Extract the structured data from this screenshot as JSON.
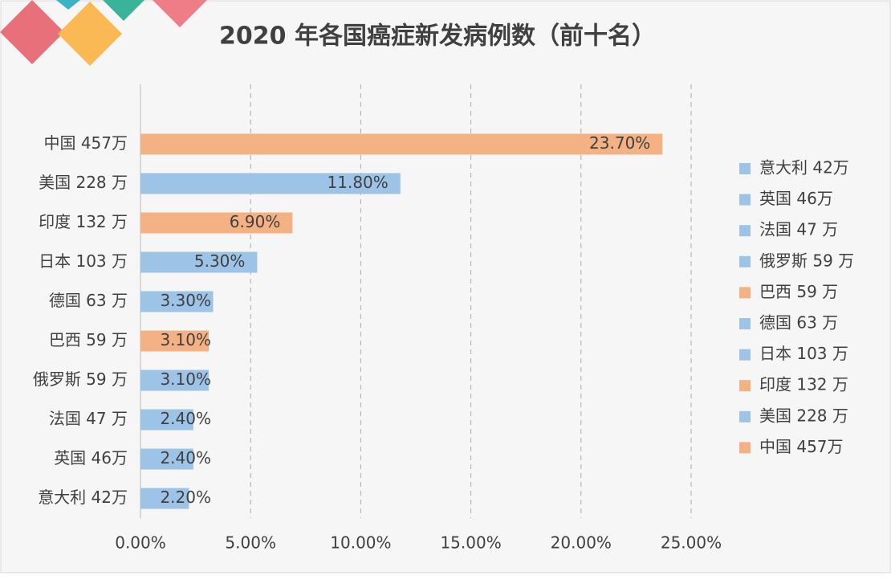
{
  "chart_data": {
    "type": "hbar",
    "title": "2020 年各国癌症新发病例数（前十名）",
    "categories": [
      "中国 457万",
      "美国 228 万",
      "印度 132 万",
      "日本 103 万",
      "德国 63 万",
      "巴西 59 万",
      "俄罗斯 59 万",
      "法国 47 万",
      "英国 46万",
      "意大利 42万"
    ],
    "values": [
      23.7,
      11.8,
      6.9,
      5.3,
      3.3,
      3.1,
      3.1,
      2.4,
      2.4,
      2.2
    ],
    "value_labels": [
      "23.70%",
      "11.80%",
      "6.90%",
      "5.30%",
      "3.30%",
      "3.10%",
      "3.10%",
      "2.40%",
      "2.40%",
      "2.20%"
    ],
    "colors": [
      "#f4b183",
      "#9dc3e6",
      "#f4b183",
      "#9dc3e6",
      "#9dc3e6",
      "#f4b183",
      "#9dc3e6",
      "#9dc3e6",
      "#9dc3e6",
      "#9dc3e6"
    ],
    "xlim": [
      0,
      25
    ],
    "xticks": [
      {
        "value": 0,
        "label": "0.00%"
      },
      {
        "value": 5,
        "label": "5.00%"
      },
      {
        "value": 10,
        "label": "10.00%"
      },
      {
        "value": 15,
        "label": "15.00%"
      },
      {
        "value": 20,
        "label": "20.00%"
      },
      {
        "value": 25,
        "label": "25.00%"
      }
    ],
    "grid": true,
    "legend": "right"
  }
}
